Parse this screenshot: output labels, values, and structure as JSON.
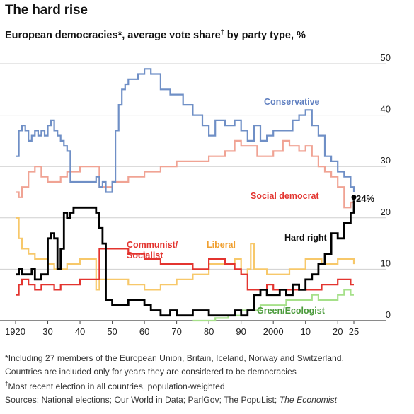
{
  "title": "The hard rise",
  "subtitle_main": "European democracies*, average vote share",
  "subtitle_mark": "†",
  "subtitle_rest": " by party type, %",
  "footnotes": {
    "line1": "*Including 27 members of the European Union, Britain, Iceland, Norway and Switzerland.",
    "line2": "Countries are included only for years they are considered to be democracies",
    "line3_mark": "†",
    "line3": "Most recent election in all countries, population-weighted",
    "line4": "Sources: National elections; Our World in Data; ParlGov; The PopuList; ",
    "line4_italic": "The Economist"
  },
  "colors": {
    "conservative": "#6f8fc6",
    "social_democrat": "#f0a394",
    "hard_right": "#000000",
    "communist_socialist": "#e3342f",
    "liberal": "#f7c86a",
    "green": "#a6e08a",
    "grid": "#cfcfcf",
    "social_democrat_label": "#e3342f",
    "liberal_label": "#f0a030",
    "conservative_label": "#5f7fc0",
    "green_label": "#4a9a3a"
  },
  "chart_data": {
    "type": "line",
    "xlim": [
      1920,
      2025
    ],
    "ylim": [
      0,
      50
    ],
    "x_ticks": [
      "1920",
      "30",
      "40",
      "50",
      "60",
      "70",
      "80",
      "90",
      "2000",
      "10",
      "20",
      "25"
    ],
    "x_tick_values": [
      1920,
      1930,
      1940,
      1950,
      1960,
      1970,
      1980,
      1990,
      2000,
      2010,
      2020,
      2025
    ],
    "y_ticks": [
      0,
      10,
      20,
      30,
      40,
      50
    ],
    "grid": true,
    "end_annotation": "24%",
    "series": [
      {
        "key": "conservative",
        "name": "Conservative",
        "x": [
          1920,
          1921,
          1922,
          1923,
          1924,
          1925,
          1926,
          1927,
          1928,
          1929,
          1930,
          1931,
          1932,
          1933,
          1934,
          1935,
          1936,
          1937,
          1945,
          1946,
          1947,
          1948,
          1949,
          1950,
          1951,
          1952,
          1953,
          1954,
          1955,
          1958,
          1960,
          1962,
          1965,
          1968,
          1970,
          1972,
          1975,
          1978,
          1980,
          1982,
          1985,
          1988,
          1990,
          1992,
          1994,
          1996,
          1998,
          2000,
          2002,
          2004,
          2006,
          2008,
          2010,
          2012,
          2014,
          2016,
          2018,
          2020,
          2022,
          2024,
          2025
        ],
        "y": [
          32,
          37,
          38,
          37,
          35,
          36,
          37,
          36,
          37,
          36,
          38,
          39,
          37,
          36,
          35,
          34,
          33,
          27,
          28,
          26,
          27,
          25,
          25,
          27,
          37,
          42,
          45,
          46,
          47,
          48,
          49,
          48,
          45,
          44,
          44,
          42,
          40,
          38,
          36,
          39,
          38,
          39,
          37,
          35,
          38,
          35,
          36,
          37,
          37,
          37,
          39,
          40,
          41,
          38,
          36,
          32,
          31,
          29,
          28,
          26,
          25
        ]
      },
      {
        "key": "social_democrat",
        "name": "Social democrat",
        "x": [
          1920,
          1921,
          1922,
          1924,
          1926,
          1928,
          1930,
          1932,
          1934,
          1936,
          1938,
          1940,
          1945,
          1946,
          1950,
          1955,
          1960,
          1965,
          1970,
          1975,
          1980,
          1985,
          1988,
          1990,
          1995,
          2000,
          2003,
          2005,
          2008,
          2010,
          2012,
          2014,
          2016,
          2018,
          2020,
          2022,
          2024,
          2025
        ],
        "y": [
          25,
          24,
          26,
          29,
          30,
          28,
          27,
          27,
          28,
          29,
          29,
          30,
          30,
          26,
          27,
          28,
          29,
          30,
          31,
          31,
          32,
          33,
          35,
          34,
          32,
          33,
          35,
          34,
          33,
          34,
          32,
          30,
          29,
          28,
          26,
          22,
          23,
          24
        ]
      },
      {
        "key": "hard_right",
        "name": "Hard right",
        "x": [
          1920,
          1921,
          1922,
          1923,
          1924,
          1925,
          1926,
          1927,
          1928,
          1929,
          1930,
          1931,
          1932,
          1933,
          1934,
          1935,
          1936,
          1937,
          1938,
          1939,
          1940,
          1941,
          1942,
          1943,
          1944,
          1945,
          1946,
          1947,
          1948,
          1950,
          1952,
          1955,
          1958,
          1960,
          1962,
          1965,
          1968,
          1970,
          1972,
          1975,
          1978,
          1980,
          1982,
          1985,
          1988,
          1990,
          1992,
          1994,
          1996,
          1998,
          2000,
          2002,
          2004,
          2006,
          2008,
          2010,
          2012,
          2014,
          2016,
          2018,
          2020,
          2022,
          2024,
          2025
        ],
        "y": [
          9,
          10,
          9,
          9,
          9,
          10,
          8,
          8,
          9,
          9,
          16,
          17,
          16,
          10,
          14,
          21,
          20,
          21,
          22,
          22,
          22,
          22,
          22,
          22,
          22,
          21,
          18,
          15,
          4,
          3,
          3,
          4,
          4,
          3,
          2,
          1,
          2,
          1,
          1,
          2,
          2,
          1,
          1,
          1,
          2,
          1,
          2,
          5,
          6,
          5,
          5,
          6,
          5,
          7,
          6,
          8,
          9,
          11,
          13,
          17,
          16,
          19,
          21,
          24
        ]
      },
      {
        "key": "communist_socialist",
        "name": "Communist/ Socialist",
        "x": [
          1920,
          1921,
          1922,
          1924,
          1926,
          1928,
          1930,
          1932,
          1934,
          1936,
          1938,
          1940,
          1944,
          1945,
          1946,
          1948,
          1950,
          1955,
          1960,
          1965,
          1970,
          1975,
          1980,
          1985,
          1988,
          1990,
          1992,
          1995,
          1998,
          2000,
          2005,
          2010,
          2015,
          2020,
          2024,
          2025
        ],
        "y": [
          5,
          7,
          8,
          7,
          6,
          7,
          7,
          6,
          7,
          7,
          7,
          8,
          8,
          8,
          14,
          14,
          14,
          13,
          12,
          11,
          11,
          10,
          12,
          11,
          10,
          9,
          6,
          6,
          7,
          6,
          6,
          6,
          7,
          8,
          7,
          7
        ]
      },
      {
        "key": "liberal",
        "name": "Liberal",
        "x": [
          1920,
          1921,
          1922,
          1924,
          1926,
          1928,
          1930,
          1932,
          1934,
          1936,
          1938,
          1940,
          1944,
          1945,
          1946,
          1948,
          1950,
          1955,
          1960,
          1965,
          1970,
          1975,
          1980,
          1985,
          1988,
          1990,
          1992,
          1993,
          1994,
          1996,
          1998,
          2000,
          2005,
          2010,
          2015,
          2020,
          2024,
          2025
        ],
        "y": [
          20,
          16,
          14,
          13,
          12,
          12,
          11,
          10,
          10,
          11,
          11,
          12,
          12,
          6,
          8,
          8,
          8,
          7,
          6,
          7,
          8,
          9,
          11,
          11,
          12,
          9,
          10,
          15,
          10,
          10,
          9,
          9,
          10,
          12,
          11,
          12,
          12,
          11
        ]
      },
      {
        "key": "green",
        "name": "Green/Ecologist",
        "x": [
          1975,
          1978,
          1980,
          1982,
          1984,
          1986,
          1988,
          1990,
          1992,
          1994,
          1996,
          1998,
          2000,
          2002,
          2004,
          2006,
          2008,
          2010,
          2012,
          2014,
          2016,
          2018,
          2020,
          2022,
          2024,
          2025
        ],
        "y": [
          0,
          0,
          0,
          0.5,
          0.5,
          1,
          1,
          2,
          2,
          2,
          3,
          3,
          3,
          3,
          4,
          4,
          4,
          4,
          5,
          4,
          4,
          4,
          5,
          6,
          5,
          5
        ]
      }
    ]
  }
}
